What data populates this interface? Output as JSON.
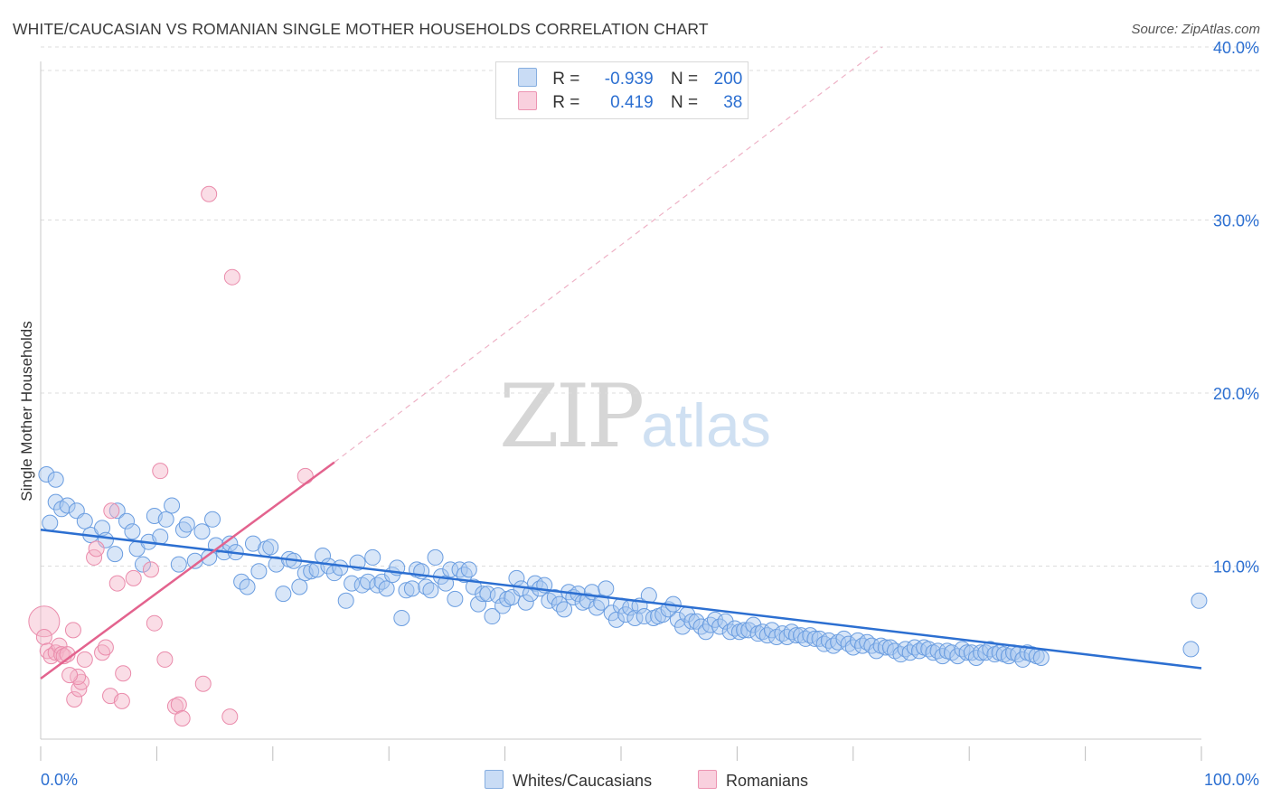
{
  "title": "WHITE/CAUCASIAN VS ROMANIAN SINGLE MOTHER HOUSEHOLDS CORRELATION CHART",
  "source": "Source: ZipAtlas.com",
  "watermark": {
    "zip": "ZIP",
    "atlas": "atlas"
  },
  "legend_top": {
    "rows": [
      {
        "r_label": "R =",
        "r_value": "-0.939",
        "n_label": "N =",
        "n_value": "200",
        "color": "#a9c8f0"
      },
      {
        "r_label": "R =",
        "r_value": "0.419",
        "n_label": "N =",
        "n_value": "38",
        "color": "#f5b3c8"
      }
    ]
  },
  "legend_bottom": [
    {
      "label": "Whites/Caucasians",
      "color": "#a9c8f0"
    },
    {
      "label": "Romanians",
      "color": "#f5b3c8"
    }
  ],
  "chart_data": {
    "type": "scatter",
    "title": "WHITE/CAUCASIAN VS ROMANIAN SINGLE MOTHER HOUSEHOLDS CORRELATION CHART",
    "xlabel": "",
    "ylabel": "Single Mother Households",
    "xlim": [
      0,
      100
    ],
    "ylim": [
      0,
      41
    ],
    "x_tick_labels": [
      "0.0%",
      "100.0%"
    ],
    "y_ticks": [
      10,
      20,
      30,
      40
    ],
    "y_tick_labels": [
      "10.0%",
      "20.0%",
      "30.0%",
      "40.0%"
    ],
    "grid": true,
    "legend_position": "top-center",
    "colors": {
      "blue": "#2c6fd1",
      "blue_fill": "#a9c8f0",
      "pink": "#e3638e",
      "pink_fill": "#f5b3c8"
    },
    "series": [
      {
        "name": "Whites/Caucasians",
        "trend": {
          "x": [
            0,
            100
          ],
          "y": [
            12.1,
            4.1
          ]
        },
        "points": [
          [
            0.5,
            15.3
          ],
          [
            1.3,
            15.0
          ],
          [
            0.8,
            12.5
          ],
          [
            1.3,
            13.7
          ],
          [
            1.8,
            13.3
          ],
          [
            2.3,
            13.5
          ],
          [
            3.1,
            13.2
          ],
          [
            3.8,
            12.6
          ],
          [
            4.3,
            11.8
          ],
          [
            5.3,
            12.2
          ],
          [
            5.6,
            11.5
          ],
          [
            6.4,
            10.7
          ],
          [
            6.6,
            13.2
          ],
          [
            7.4,
            12.6
          ],
          [
            7.9,
            12.0
          ],
          [
            8.3,
            11.0
          ],
          [
            8.8,
            10.1
          ],
          [
            9.3,
            11.4
          ],
          [
            9.8,
            12.9
          ],
          [
            10.3,
            11.7
          ],
          [
            10.8,
            12.7
          ],
          [
            11.3,
            13.5
          ],
          [
            11.9,
            10.1
          ],
          [
            12.3,
            12.1
          ],
          [
            12.6,
            12.4
          ],
          [
            13.3,
            10.3
          ],
          [
            13.9,
            12.0
          ],
          [
            14.5,
            10.5
          ],
          [
            14.8,
            12.7
          ],
          [
            15.1,
            11.2
          ],
          [
            15.8,
            10.8
          ],
          [
            16.3,
            11.3
          ],
          [
            16.8,
            10.8
          ],
          [
            17.3,
            9.1
          ],
          [
            17.8,
            8.8
          ],
          [
            18.3,
            11.3
          ],
          [
            18.8,
            9.7
          ],
          [
            19.4,
            11.0
          ],
          [
            19.8,
            11.1
          ],
          [
            20.3,
            10.1
          ],
          [
            20.9,
            8.4
          ],
          [
            21.4,
            10.4
          ],
          [
            21.8,
            10.3
          ],
          [
            22.3,
            8.8
          ],
          [
            22.8,
            9.6
          ],
          [
            23.3,
            9.7
          ],
          [
            23.8,
            9.8
          ],
          [
            24.3,
            10.6
          ],
          [
            24.8,
            10.0
          ],
          [
            25.3,
            9.6
          ],
          [
            25.8,
            9.9
          ],
          [
            26.3,
            8.0
          ],
          [
            26.8,
            9.0
          ],
          [
            27.3,
            10.2
          ],
          [
            27.7,
            8.9
          ],
          [
            28.2,
            9.1
          ],
          [
            28.6,
            10.5
          ],
          [
            29.0,
            8.9
          ],
          [
            29.4,
            9.1
          ],
          [
            29.8,
            8.7
          ],
          [
            30.3,
            9.5
          ],
          [
            30.7,
            9.9
          ],
          [
            31.1,
            7.0
          ],
          [
            31.5,
            8.6
          ],
          [
            32.0,
            8.7
          ],
          [
            32.4,
            9.8
          ],
          [
            32.8,
            9.7
          ],
          [
            33.2,
            8.8
          ],
          [
            33.6,
            8.6
          ],
          [
            34.0,
            10.5
          ],
          [
            34.5,
            9.4
          ],
          [
            34.9,
            9.0
          ],
          [
            35.3,
            9.8
          ],
          [
            35.7,
            8.1
          ],
          [
            36.1,
            9.8
          ],
          [
            36.5,
            9.5
          ],
          [
            36.9,
            9.8
          ],
          [
            37.3,
            8.8
          ],
          [
            37.7,
            7.8
          ],
          [
            38.1,
            8.4
          ],
          [
            38.5,
            8.4
          ],
          [
            38.9,
            7.1
          ],
          [
            39.4,
            8.3
          ],
          [
            39.8,
            7.7
          ],
          [
            40.2,
            8.1
          ],
          [
            40.6,
            8.2
          ],
          [
            41.0,
            9.3
          ],
          [
            41.4,
            8.7
          ],
          [
            41.8,
            7.9
          ],
          [
            42.2,
            8.4
          ],
          [
            42.6,
            9.0
          ],
          [
            43.0,
            8.7
          ],
          [
            43.4,
            8.9
          ],
          [
            43.8,
            8.0
          ],
          [
            44.3,
            8.2
          ],
          [
            44.7,
            7.8
          ],
          [
            45.1,
            7.5
          ],
          [
            45.5,
            8.5
          ],
          [
            45.9,
            8.2
          ],
          [
            46.3,
            8.4
          ],
          [
            46.7,
            7.9
          ],
          [
            47.1,
            8.0
          ],
          [
            47.5,
            8.5
          ],
          [
            47.9,
            7.6
          ],
          [
            48.3,
            7.9
          ],
          [
            48.7,
            8.7
          ],
          [
            49.2,
            7.3
          ],
          [
            49.6,
            6.9
          ],
          [
            50.0,
            7.7
          ],
          [
            50.4,
            7.2
          ],
          [
            50.8,
            7.6
          ],
          [
            51.2,
            7.0
          ],
          [
            51.6,
            7.7
          ],
          [
            52.0,
            7.1
          ],
          [
            52.4,
            8.3
          ],
          [
            52.8,
            7.0
          ],
          [
            53.2,
            7.1
          ],
          [
            53.6,
            7.2
          ],
          [
            54.1,
            7.5
          ],
          [
            54.5,
            7.8
          ],
          [
            54.9,
            6.9
          ],
          [
            55.3,
            6.5
          ],
          [
            55.7,
            7.2
          ],
          [
            56.1,
            6.8
          ],
          [
            56.5,
            6.8
          ],
          [
            56.9,
            6.5
          ],
          [
            57.3,
            6.2
          ],
          [
            57.7,
            6.6
          ],
          [
            58.1,
            6.9
          ],
          [
            58.5,
            6.5
          ],
          [
            59.0,
            6.8
          ],
          [
            59.4,
            6.2
          ],
          [
            59.8,
            6.4
          ],
          [
            60.2,
            6.2
          ],
          [
            60.6,
            6.3
          ],
          [
            61.0,
            6.3
          ],
          [
            61.4,
            6.6
          ],
          [
            61.8,
            6.1
          ],
          [
            62.2,
            6.2
          ],
          [
            62.6,
            6.0
          ],
          [
            63.0,
            6.3
          ],
          [
            63.4,
            5.9
          ],
          [
            63.9,
            6.1
          ],
          [
            64.3,
            5.9
          ],
          [
            64.7,
            6.2
          ],
          [
            65.1,
            6.0
          ],
          [
            65.5,
            6.0
          ],
          [
            65.9,
            5.8
          ],
          [
            66.3,
            6.0
          ],
          [
            66.7,
            5.8
          ],
          [
            67.1,
            5.8
          ],
          [
            67.5,
            5.5
          ],
          [
            67.9,
            5.7
          ],
          [
            68.3,
            5.4
          ],
          [
            68.7,
            5.6
          ],
          [
            69.2,
            5.8
          ],
          [
            69.6,
            5.5
          ],
          [
            70.0,
            5.3
          ],
          [
            70.4,
            5.7
          ],
          [
            70.8,
            5.4
          ],
          [
            71.2,
            5.6
          ],
          [
            71.6,
            5.4
          ],
          [
            72.0,
            5.1
          ],
          [
            72.4,
            5.4
          ],
          [
            72.8,
            5.3
          ],
          [
            73.2,
            5.3
          ],
          [
            73.6,
            5.1
          ],
          [
            74.1,
            4.9
          ],
          [
            74.5,
            5.2
          ],
          [
            74.9,
            5.0
          ],
          [
            75.3,
            5.3
          ],
          [
            75.7,
            5.1
          ],
          [
            76.1,
            5.3
          ],
          [
            76.5,
            5.2
          ],
          [
            76.9,
            5.0
          ],
          [
            77.3,
            5.1
          ],
          [
            77.7,
            4.8
          ],
          [
            78.1,
            5.1
          ],
          [
            78.5,
            5.0
          ],
          [
            79.0,
            4.8
          ],
          [
            79.4,
            5.2
          ],
          [
            79.8,
            5.0
          ],
          [
            80.2,
            5.0
          ],
          [
            80.6,
            4.7
          ],
          [
            81.0,
            5.0
          ],
          [
            81.4,
            5.0
          ],
          [
            81.8,
            5.2
          ],
          [
            82.2,
            4.9
          ],
          [
            82.6,
            5.0
          ],
          [
            83.0,
            4.9
          ],
          [
            83.4,
            4.8
          ],
          [
            83.8,
            5.0
          ],
          [
            84.2,
            4.9
          ],
          [
            84.6,
            4.6
          ],
          [
            85.0,
            5.0
          ],
          [
            85.4,
            4.9
          ],
          [
            85.8,
            4.8
          ],
          [
            86.2,
            4.7
          ],
          [
            99.1,
            5.2
          ],
          [
            99.8,
            8.0
          ]
        ]
      },
      {
        "name": "Romanians",
        "trend": {
          "x": [
            0,
            25.3
          ],
          "y": [
            3.5,
            16.0
          ]
        },
        "trend_extension": {
          "x": [
            25.3,
            72.5
          ],
          "y": [
            16.0,
            40.0
          ]
        },
        "points": [
          [
            0.3,
            6.8
          ],
          [
            0.3,
            5.9
          ],
          [
            0.6,
            5.1
          ],
          [
            0.9,
            4.8
          ],
          [
            1.3,
            5.0
          ],
          [
            1.6,
            5.4
          ],
          [
            1.8,
            4.9
          ],
          [
            2.0,
            4.8
          ],
          [
            2.3,
            4.9
          ],
          [
            2.8,
            6.3
          ],
          [
            2.9,
            2.3
          ],
          [
            3.3,
            2.9
          ],
          [
            3.5,
            3.3
          ],
          [
            3.8,
            4.6
          ],
          [
            3.2,
            3.6
          ],
          [
            2.5,
            3.7
          ],
          [
            4.6,
            10.5
          ],
          [
            4.8,
            11.0
          ],
          [
            5.3,
            5.0
          ],
          [
            5.6,
            5.3
          ],
          [
            6.0,
            2.5
          ],
          [
            6.1,
            13.2
          ],
          [
            6.6,
            9.0
          ],
          [
            7.0,
            2.2
          ],
          [
            7.1,
            3.8
          ],
          [
            8.0,
            9.3
          ],
          [
            9.5,
            9.8
          ],
          [
            9.8,
            6.7
          ],
          [
            10.3,
            15.5
          ],
          [
            10.7,
            4.6
          ],
          [
            11.6,
            1.9
          ],
          [
            11.9,
            2.0
          ],
          [
            12.2,
            1.2
          ],
          [
            14.0,
            3.2
          ],
          [
            14.5,
            31.5
          ],
          [
            16.3,
            1.3
          ],
          [
            16.5,
            26.7
          ],
          [
            22.8,
            15.2
          ]
        ]
      }
    ]
  }
}
